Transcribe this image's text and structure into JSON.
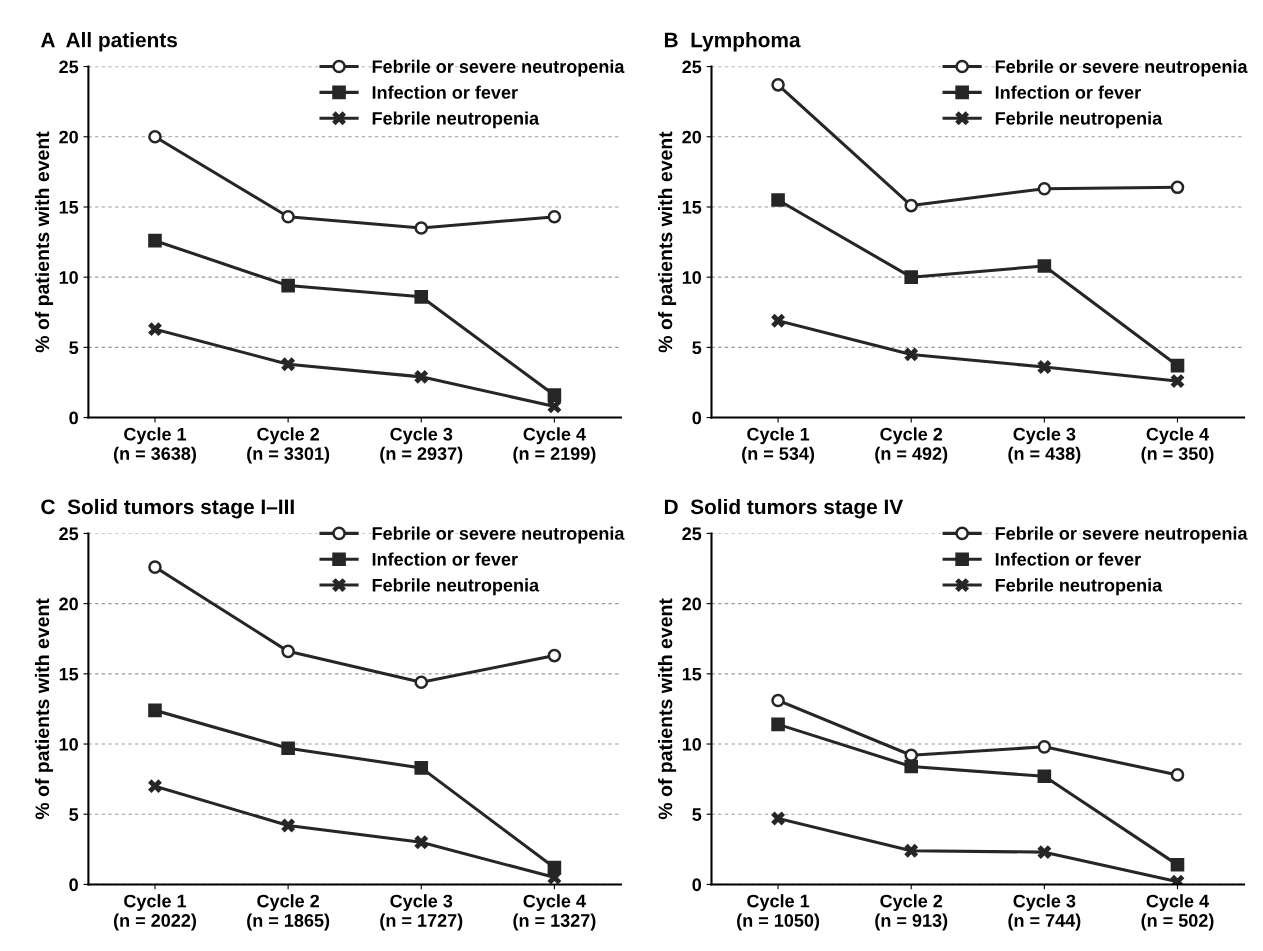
{
  "chart_data": [
    {
      "type": "line",
      "title": "A  All patients",
      "ylabel": "% of patients with event",
      "categories": [
        "Cycle 1\n(n = 3638)",
        "Cycle 2\n(n = 3301)",
        "Cycle 3\n(n = 2937)",
        "Cycle 4\n(n = 2199)"
      ],
      "ylim": [
        0,
        25
      ],
      "yticks": [
        0,
        5,
        10,
        15,
        20,
        25
      ],
      "grid": "y",
      "legend": "top right",
      "series": [
        {
          "name": "Febrile or severe neutropenia",
          "color": "#262626",
          "marker": "circle",
          "values": [
            20.0,
            14.3,
            13.5,
            14.3
          ]
        },
        {
          "name": "Infection or fever",
          "color": "#262626",
          "marker": "square",
          "values": [
            12.6,
            9.4,
            8.6,
            1.6
          ]
        },
        {
          "name": "Febrile neutropenia",
          "color": "#262626",
          "marker": "cross",
          "values": [
            6.3,
            3.8,
            2.9,
            0.8
          ]
        }
      ]
    },
    {
      "type": "line",
      "title": "B  Lymphoma",
      "ylabel": "% of patients with event",
      "categories": [
        "Cycle 1\n(n = 534)",
        "Cycle 2\n(n = 492)",
        "Cycle 3\n(n = 438)",
        "Cycle 4\n(n = 350)"
      ],
      "ylim": [
        0,
        25
      ],
      "yticks": [
        0,
        5,
        10,
        15,
        20,
        25
      ],
      "grid": "y",
      "legend": "top right",
      "series": [
        {
          "name": "Febrile or severe neutropenia",
          "color": "#262626",
          "marker": "circle",
          "values": [
            23.7,
            15.1,
            16.3,
            16.4
          ]
        },
        {
          "name": "Infection or fever",
          "color": "#262626",
          "marker": "square",
          "values": [
            15.5,
            10.0,
            10.8,
            3.7
          ]
        },
        {
          "name": "Febrile neutropenia",
          "color": "#262626",
          "marker": "cross",
          "values": [
            6.9,
            4.5,
            3.6,
            2.6
          ]
        }
      ]
    },
    {
      "type": "line",
      "title": "C  Solid tumors stage I–III",
      "ylabel": "% of patients with event",
      "categories": [
        "Cycle 1\n(n = 2022)",
        "Cycle 2\n(n = 1865)",
        "Cycle 3\n(n = 1727)",
        "Cycle 4\n(n = 1327)"
      ],
      "ylim": [
        0,
        25
      ],
      "yticks": [
        0,
        5,
        10,
        15,
        20,
        25
      ],
      "grid": "y",
      "legend": "top right",
      "series": [
        {
          "name": "Febrile or severe neutropenia",
          "color": "#262626",
          "marker": "circle",
          "values": [
            22.6,
            16.6,
            14.4,
            16.3
          ]
        },
        {
          "name": "Infection or fever",
          "color": "#262626",
          "marker": "square",
          "values": [
            12.4,
            9.7,
            8.3,
            1.2
          ]
        },
        {
          "name": "Febrile neutropenia",
          "color": "#262626",
          "marker": "cross",
          "values": [
            7.0,
            4.2,
            3.0,
            0.5
          ]
        }
      ]
    },
    {
      "type": "line",
      "title": "D  Solid tumors stage IV",
      "ylabel": "% of patients with event",
      "categories": [
        "Cycle 1\n(n = 1050)",
        "Cycle 2\n(n = 913)",
        "Cycle 3\n(n = 744)",
        "Cycle 4\n(n = 502)"
      ],
      "ylim": [
        0,
        25
      ],
      "yticks": [
        0,
        5,
        10,
        15,
        20,
        25
      ],
      "grid": "y",
      "legend": "top right",
      "series": [
        {
          "name": "Febrile or severe neutropenia",
          "color": "#262626",
          "marker": "circle",
          "values": [
            13.1,
            9.2,
            9.8,
            7.8
          ]
        },
        {
          "name": "Infection or fever",
          "color": "#262626",
          "marker": "square",
          "values": [
            11.4,
            8.4,
            7.7,
            1.4
          ]
        },
        {
          "name": "Febrile neutropenia",
          "color": "#262626",
          "marker": "cross",
          "values": [
            4.7,
            2.4,
            2.3,
            0.2
          ]
        }
      ]
    }
  ]
}
